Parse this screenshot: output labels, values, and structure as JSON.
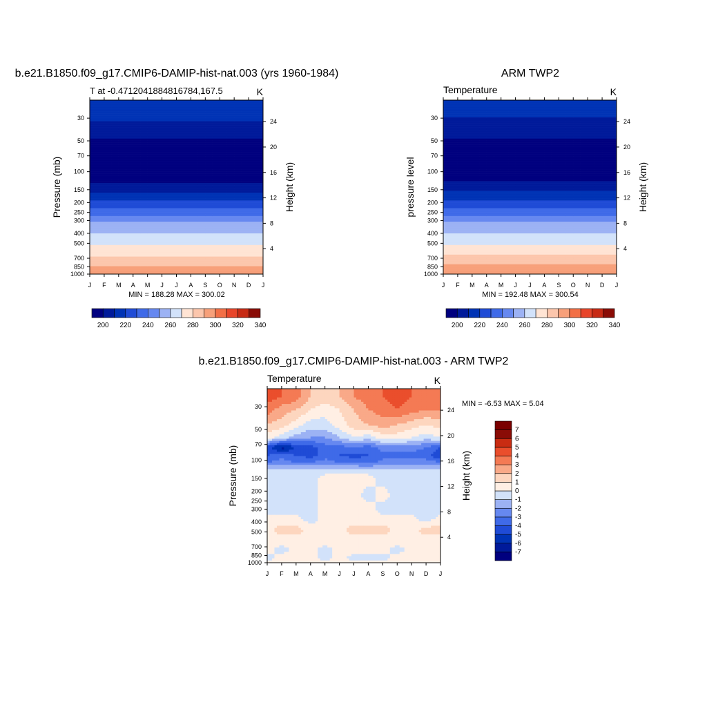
{
  "panels": [
    {
      "title": "b.e21.B1850.f09_g17.CMIP6-DAMIP-hist-nat.003 (yrs 1960-1984)",
      "subtitle_left": "T at -0.4712041884816784,167.5",
      "subtitle_right": "K",
      "ylabel": "Pressure (mb)",
      "ylabel_right": "Height (km)",
      "stats": "MIN = 188.28 MAX = 300.02"
    },
    {
      "title": "ARM TWP2",
      "subtitle_left": "Temperature",
      "subtitle_right": "K",
      "ylabel": "pressure level",
      "ylabel_right": "Height (km)",
      "stats": "MIN = 192.48 MAX = 300.54"
    },
    {
      "title": "b.e21.B1850.f09_g17.CMIP6-DAMIP-hist-nat.003 - ARM TWP2",
      "subtitle_left": "Temperature",
      "subtitle_right": "K",
      "ylabel": "Pressure (mb)",
      "ylabel_right": "Height (km)",
      "stats": "MIN =  -6.53 MAX =   5.04"
    }
  ],
  "chart_data": [
    {
      "type": "heatmap",
      "title": "b.e21.B1850.f09_g17.CMIP6-DAMIP-hist-nat.003 (yrs 1960-1984)",
      "x": [
        "J",
        "F",
        "M",
        "A",
        "M",
        "J",
        "J",
        "A",
        "S",
        "O",
        "N",
        "D",
        "J"
      ],
      "xlabel": "",
      "ylabel": "Pressure (mb)",
      "y_right_label": "Height (km)",
      "y_scale": "log",
      "ylim": [
        1000,
        20
      ],
      "y_ticks": [
        30,
        50,
        70,
        100,
        150,
        200,
        250,
        300,
        400,
        500,
        700,
        850,
        1000
      ],
      "y_right_ticks": [
        4,
        8,
        12,
        16,
        20,
        24
      ],
      "units": "K",
      "min": 188.28,
      "max": 300.02,
      "levels": [
        200,
        210,
        220,
        230,
        240,
        250,
        260,
        270,
        280,
        290,
        300,
        310,
        320,
        330,
        340
      ],
      "colorbar_labels": [
        200,
        220,
        240,
        260,
        280,
        300,
        320,
        340
      ],
      "profile": [
        {
          "p": 25,
          "v": 215
        },
        {
          "p": 40,
          "v": 205
        },
        {
          "p": 57,
          "v": 196
        },
        {
          "p": 80,
          "v": 192
        },
        {
          "p": 120,
          "v": 193
        },
        {
          "p": 140,
          "v": 204
        },
        {
          "p": 170,
          "v": 212
        },
        {
          "p": 200,
          "v": 222
        },
        {
          "p": 240,
          "v": 232
        },
        {
          "p": 275,
          "v": 241
        },
        {
          "p": 320,
          "v": 251
        },
        {
          "p": 390,
          "v": 258
        },
        {
          "p": 470,
          "v": 266
        },
        {
          "p": 570,
          "v": 274
        },
        {
          "p": 720,
          "v": 283
        },
        {
          "p": 860,
          "v": 291
        },
        {
          "p": 1000,
          "v": 298
        }
      ]
    },
    {
      "type": "heatmap",
      "title": "ARM TWP2",
      "x": [
        "J",
        "F",
        "M",
        "A",
        "M",
        "J",
        "J",
        "A",
        "S",
        "O",
        "N",
        "D",
        "J"
      ],
      "xlabel": "",
      "ylabel": "pressure level",
      "y_right_label": "Height (km)",
      "y_scale": "log",
      "ylim": [
        1000,
        20
      ],
      "y_ticks": [
        30,
        50,
        70,
        100,
        150,
        200,
        250,
        300,
        400,
        500,
        700,
        850,
        1000
      ],
      "y_right_ticks": [
        4,
        8,
        12,
        16,
        20,
        24
      ],
      "units": "K",
      "min": 192.48,
      "max": 300.54,
      "levels": [
        200,
        210,
        220,
        230,
        240,
        250,
        260,
        270,
        280,
        290,
        300,
        310,
        320,
        330,
        340
      ],
      "colorbar_labels": [
        200,
        220,
        240,
        260,
        280,
        300,
        320,
        340
      ],
      "profile": [
        {
          "p": 25,
          "v": 213
        },
        {
          "p": 40,
          "v": 204
        },
        {
          "p": 57,
          "v": 196
        },
        {
          "p": 80,
          "v": 193
        },
        {
          "p": 115,
          "v": 194
        },
        {
          "p": 135,
          "v": 204
        },
        {
          "p": 165,
          "v": 212
        },
        {
          "p": 195,
          "v": 222
        },
        {
          "p": 235,
          "v": 232
        },
        {
          "p": 275,
          "v": 241
        },
        {
          "p": 320,
          "v": 251
        },
        {
          "p": 390,
          "v": 258
        },
        {
          "p": 470,
          "v": 266
        },
        {
          "p": 560,
          "v": 274
        },
        {
          "p": 700,
          "v": 284
        },
        {
          "p": 860,
          "v": 292
        },
        {
          "p": 1000,
          "v": 299
        }
      ]
    },
    {
      "type": "heatmap",
      "title": "b.e21.B1850.f09_g17.CMIP6-DAMIP-hist-nat.003 - ARM TWP2",
      "x": [
        "J",
        "F",
        "M",
        "A",
        "M",
        "J",
        "J",
        "A",
        "S",
        "O",
        "N",
        "D",
        "J"
      ],
      "xlabel": "",
      "ylabel": "Pressure (mb)",
      "y_right_label": "Height (km)",
      "y_scale": "log",
      "ylim": [
        1000,
        20
      ],
      "y_ticks": [
        30,
        50,
        70,
        100,
        150,
        200,
        250,
        300,
        400,
        500,
        700,
        850,
        1000
      ],
      "y_right_ticks": [
        4,
        8,
        12,
        16,
        20,
        24
      ],
      "units": "K",
      "min": -6.53,
      "max": 5.04,
      "levels": [
        -7,
        -6,
        -5,
        -4,
        -3,
        -2,
        -1,
        0,
        1,
        2,
        3,
        4,
        5,
        6,
        7
      ],
      "colorbar_labels": [
        -7,
        -6,
        -5,
        -4,
        -3,
        -2,
        -1,
        0,
        1,
        2,
        3,
        4,
        5,
        6,
        7
      ],
      "grid_months": 13,
      "grid": [
        {
          "p": 24,
          "row": [
            4.5,
            4.0,
            3.5,
            2.0,
            1.5,
            2.0,
            3.0,
            3.5,
            4.0,
            4.5,
            4.0,
            3.5,
            4.0
          ]
        },
        {
          "p": 32,
          "row": [
            3.5,
            2.5,
            2.0,
            1.0,
            0.5,
            1.0,
            2.0,
            3.0,
            3.5,
            4.0,
            3.5,
            3.0,
            3.0
          ]
        },
        {
          "p": 45,
          "row": [
            2.0,
            1.5,
            0.5,
            -0.5,
            -0.5,
            0.5,
            1.5,
            2.0,
            2.5,
            2.0,
            1.5,
            1.0,
            1.5
          ]
        },
        {
          "p": 60,
          "row": [
            0.5,
            -0.5,
            -1.5,
            -2.0,
            -2.0,
            -1.0,
            0.0,
            -0.5,
            0.5,
            0.5,
            0.0,
            -0.5,
            0.0
          ]
        },
        {
          "p": 75,
          "row": [
            -4.5,
            -6.5,
            -5.0,
            -4.5,
            -3.5,
            -3.5,
            -3.0,
            -3.5,
            -2.5,
            -2.5,
            -2.5,
            -3.0,
            -4.0
          ]
        },
        {
          "p": 90,
          "row": [
            -4.0,
            -3.5,
            -4.0,
            -4.5,
            -3.5,
            -4.0,
            -4.5,
            -4.0,
            -3.5,
            -3.5,
            -3.5,
            -3.5,
            -5.0
          ]
        },
        {
          "p": 105,
          "row": [
            -3.0,
            -2.5,
            -3.0,
            -3.0,
            -2.5,
            -3.0,
            -3.0,
            -3.5,
            -2.5,
            -2.5,
            -2.5,
            -2.5,
            -3.0
          ]
        },
        {
          "p": 125,
          "row": [
            -0.5,
            -0.5,
            -0.5,
            -0.5,
            -0.5,
            -0.5,
            -0.5,
            -0.5,
            -0.5,
            -0.5,
            -0.5,
            -0.5,
            -0.5
          ]
        },
        {
          "p": 150,
          "row": [
            -0.5,
            -0.5,
            -0.5,
            -0.5,
            0.5,
            0.5,
            0.5,
            0.5,
            -0.5,
            -0.5,
            -0.5,
            -0.5,
            -0.5
          ]
        },
        {
          "p": 220,
          "row": [
            -0.5,
            -0.5,
            -0.5,
            -0.5,
            0.5,
            0.5,
            0.5,
            -0.5,
            0.5,
            -0.5,
            -0.5,
            -0.5,
            -0.5
          ]
        },
        {
          "p": 300,
          "row": [
            -0.5,
            -0.5,
            -0.5,
            -0.5,
            0.5,
            0.5,
            0.5,
            0.5,
            -0.5,
            -0.5,
            -0.5,
            -0.5,
            -0.5
          ]
        },
        {
          "p": 380,
          "row": [
            0.5,
            0.5,
            0.5,
            -0.5,
            0.5,
            0.5,
            0.5,
            0.5,
            0.5,
            0.5,
            0.5,
            -0.5,
            0.5
          ]
        },
        {
          "p": 480,
          "row": [
            0.5,
            1.5,
            1.5,
            0.5,
            0.5,
            0.5,
            1.5,
            1.5,
            1.5,
            0.5,
            0.5,
            1.5,
            1.5
          ]
        },
        {
          "p": 600,
          "row": [
            0.5,
            0.5,
            0.5,
            0.5,
            0.5,
            0.5,
            0.5,
            0.5,
            0.5,
            0.5,
            0.5,
            0.5,
            0.5
          ]
        },
        {
          "p": 750,
          "row": [
            0.5,
            -0.5,
            0.5,
            0.5,
            -0.5,
            0.5,
            0.5,
            0.5,
            0.5,
            -0.5,
            0.5,
            0.5,
            0.5
          ]
        },
        {
          "p": 900,
          "row": [
            -0.5,
            0.5,
            0.5,
            0.5,
            -0.5,
            0.5,
            -0.5,
            -0.5,
            -0.5,
            0.5,
            0.5,
            0.5,
            0.5
          ]
        },
        {
          "p": 1000,
          "row": [
            0.5,
            0.5,
            0.5,
            0.5,
            0.5,
            0.5,
            0.5,
            0.5,
            0.5,
            0.5,
            0.5,
            0.5,
            0.5
          ]
        }
      ]
    }
  ],
  "palette": [
    "#00007f",
    "#001a9a",
    "#0033b5",
    "#1f4bd6",
    "#3f6ae8",
    "#6688f0",
    "#9cb2f4",
    "#d2e2fa",
    "#ffe4d4",
    "#fcc6ac",
    "#f7a07a",
    "#f26f46",
    "#e8452a",
    "#c72a14",
    "#8a0c06"
  ],
  "palette_diff": [
    "#00007f",
    "#001a9a",
    "#0033b5",
    "#1f4bd6",
    "#3f6ae8",
    "#6688f0",
    "#9cb2f4",
    "#d2e2fa",
    "#ffefe4",
    "#fdd6bf",
    "#f9a988",
    "#f47a54",
    "#ea4e2c",
    "#c92c12",
    "#8a0c06",
    "#7a0000"
  ]
}
